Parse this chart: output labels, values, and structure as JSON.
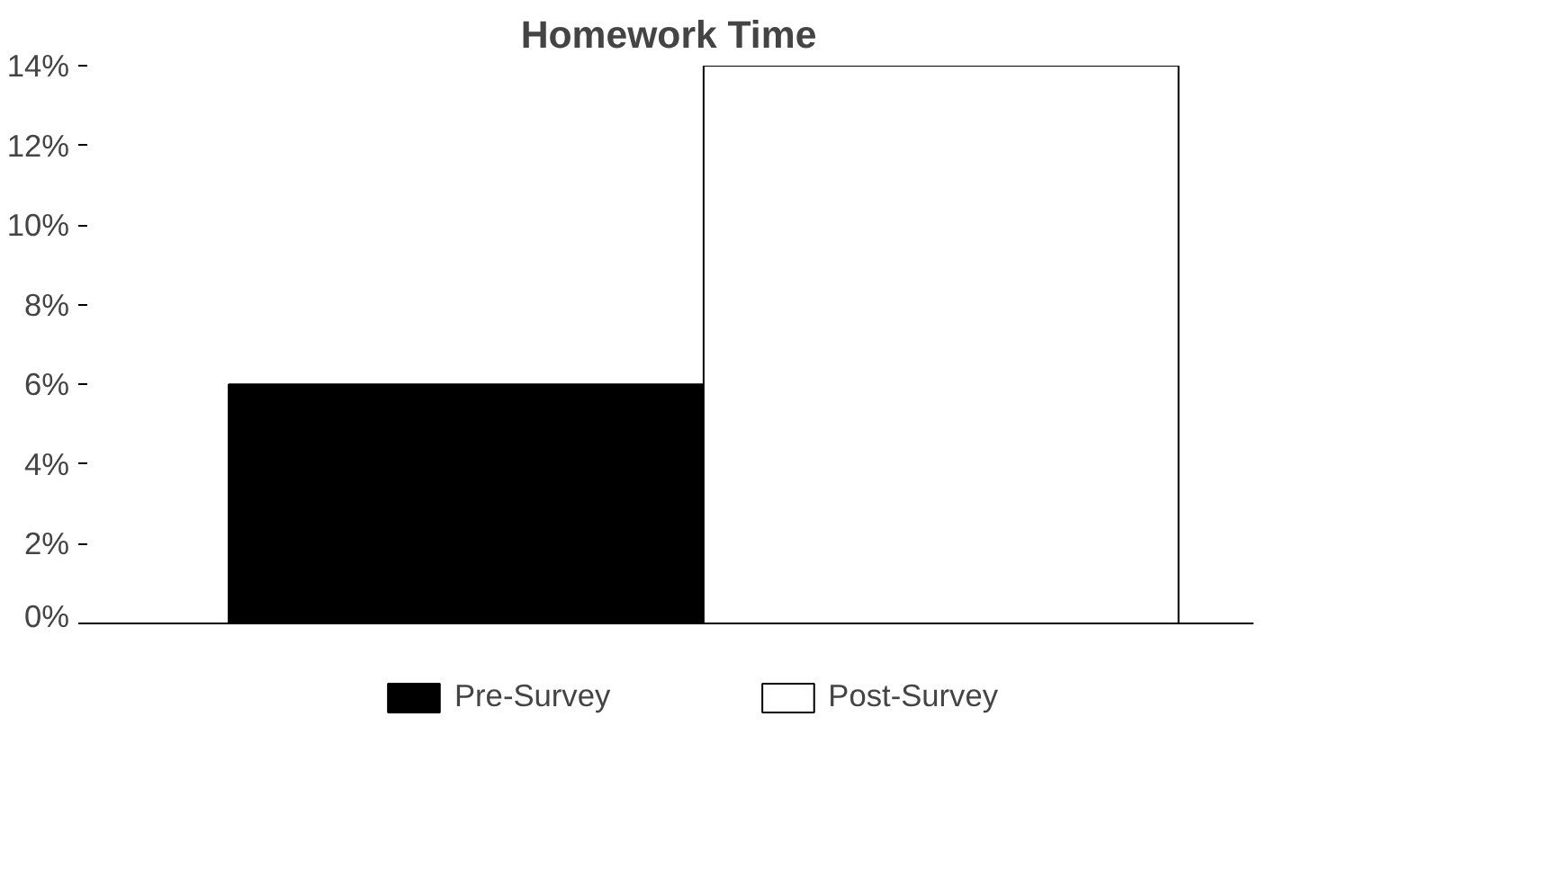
{
  "chart_data": {
    "type": "bar",
    "title": "Homework Time",
    "categories": [
      null
    ],
    "series": [
      {
        "name": "Pre-Survey",
        "color": "#000000",
        "values": [
          6
        ]
      },
      {
        "name": "Post-Survey",
        "color": "#ffffff",
        "values": [
          14
        ]
      }
    ],
    "ylim": [
      0,
      14
    ],
    "yticks": [
      {
        "value": 0,
        "label": "0%"
      },
      {
        "value": 2,
        "label": "2%"
      },
      {
        "value": 4,
        "label": "4%"
      },
      {
        "value": 6,
        "label": "6%"
      },
      {
        "value": 8,
        "label": "8%"
      },
      {
        "value": 10,
        "label": "10%"
      },
      {
        "value": 12,
        "label": "12%"
      },
      {
        "value": 14,
        "label": "14%"
      }
    ],
    "grid": false,
    "legend": "bottom"
  }
}
